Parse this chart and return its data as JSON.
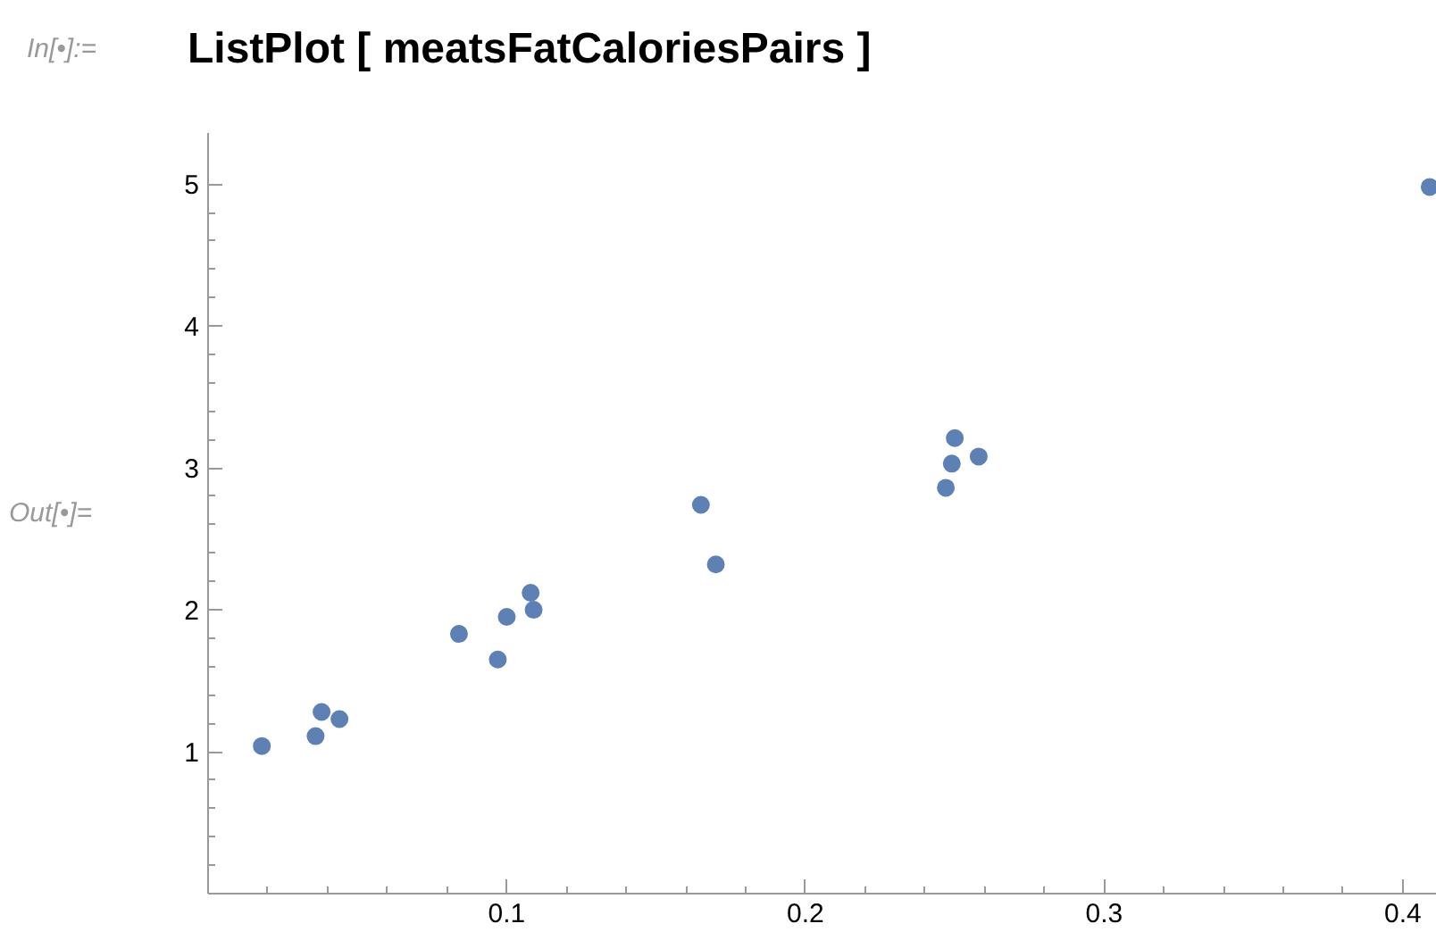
{
  "chart_data": {
    "type": "scatter",
    "title": "ListPlot [ meatsFatCaloriesPairs ]",
    "annotations": [
      "In[•]:=",
      "Out[•]="
    ],
    "x": [
      0.018,
      0.036,
      0.038,
      0.044,
      0.084,
      0.097,
      0.1,
      0.108,
      0.109,
      0.165,
      0.17,
      0.247,
      0.249,
      0.25,
      0.258,
      0.409
    ],
    "series": [
      {
        "color": "#5e81b5",
        "values": [
          1.04,
          1.11,
          1.28,
          1.23,
          1.83,
          1.65,
          1.95,
          2.12,
          2.0,
          2.74,
          2.32,
          2.86,
          3.03,
          3.21,
          3.08,
          4.98
        ]
      }
    ],
    "marker": "circle",
    "xlim": [
      0,
      0.415
    ],
    "ylim": [
      0,
      5.36
    ],
    "xticks": [
      {
        "value": 0.02,
        "label": null
      },
      {
        "value": 0.04,
        "label": null
      },
      {
        "value": 0.06,
        "label": null
      },
      {
        "value": 0.08,
        "label": null
      },
      0.1,
      {
        "value": 0.12,
        "label": null
      },
      {
        "value": 0.14,
        "label": null
      },
      {
        "value": 0.16,
        "label": null
      },
      {
        "value": 0.18,
        "label": null
      },
      0.2,
      {
        "value": 0.22,
        "label": null
      },
      {
        "value": 0.24,
        "label": null
      },
      {
        "value": 0.26,
        "label": null
      },
      {
        "value": 0.28,
        "label": null
      },
      0.3,
      {
        "value": 0.32,
        "label": null
      },
      {
        "value": 0.34,
        "label": null
      },
      {
        "value": 0.36,
        "label": null
      },
      {
        "value": 0.38,
        "label": null
      },
      0.4
    ],
    "yticks": [
      {
        "value": 0.2,
        "label": null
      },
      {
        "value": 0.4,
        "label": null
      },
      {
        "value": 0.6,
        "label": null
      },
      {
        "value": 0.8,
        "label": null
      },
      1,
      {
        "value": 1.2,
        "label": null
      },
      {
        "value": 1.4,
        "label": null
      },
      {
        "value": 1.6,
        "label": null
      },
      {
        "value": 1.8,
        "label": null
      },
      2,
      {
        "value": 2.2,
        "label": null
      },
      {
        "value": 2.4,
        "label": null
      },
      {
        "value": 2.6,
        "label": null
      },
      {
        "value": 2.8,
        "label": null
      },
      3,
      {
        "value": 3.2,
        "label": null
      },
      {
        "value": 3.4,
        "label": null
      },
      {
        "value": 3.6,
        "label": null
      },
      {
        "value": 3.8,
        "label": null
      },
      4,
      {
        "value": 4.2,
        "label": null
      },
      {
        "value": 4.4,
        "label": null
      },
      {
        "value": 4.6,
        "label": null
      },
      {
        "value": 4.8,
        "label": null
      },
      5
    ],
    "grid": false
  }
}
